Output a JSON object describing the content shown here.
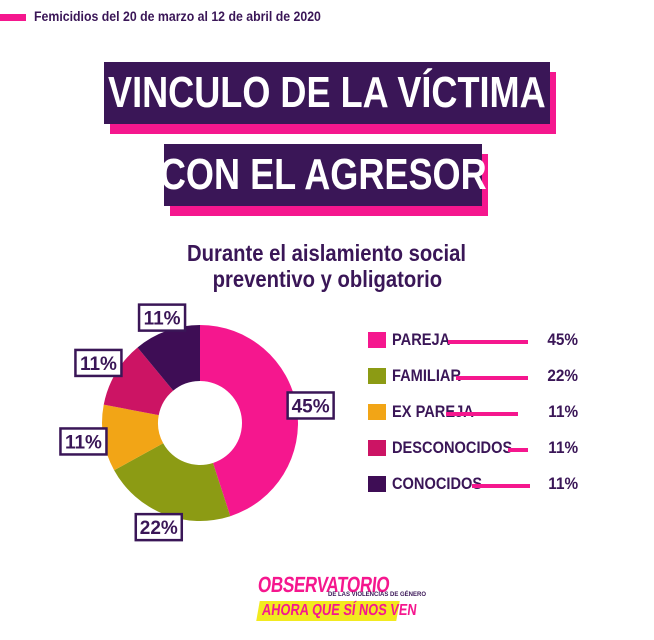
{
  "header": {
    "period": "Femicidios del 20 de marzo al 12 de abril de 2020"
  },
  "title": {
    "line1": "VINCULO DE LA VÍCTIMA",
    "line2": "CON EL AGRESOR"
  },
  "description": {
    "line1": "Durante el aislamiento social",
    "line2": "preventivo y obligatorio"
  },
  "chart_data": {
    "type": "pie",
    "style": "donut",
    "categories": [
      "PAREJA",
      "FAMILIAR",
      "EX PAREJA",
      "DESCONOCIDOS",
      "CONOCIDOS"
    ],
    "values": [
      45,
      22,
      11,
      11,
      11
    ],
    "value_labels": [
      "45%",
      "22%",
      "11%",
      "11%",
      "11%"
    ],
    "colors": [
      "#f5178e",
      "#8c9b14",
      "#f2a516",
      "#cc1464",
      "#3e0d55"
    ],
    "legend_position": "right"
  },
  "colors": {
    "accent": "#f5178e",
    "dark": "#3a1657",
    "logo_bar": "#f2ea1f"
  },
  "logo": {
    "top": "OBSERVATORIO",
    "small": "DE LAS VIOLENCIAS DE GÉNERO",
    "bottom": "AHORA QUE SÍ NOS VEN"
  }
}
